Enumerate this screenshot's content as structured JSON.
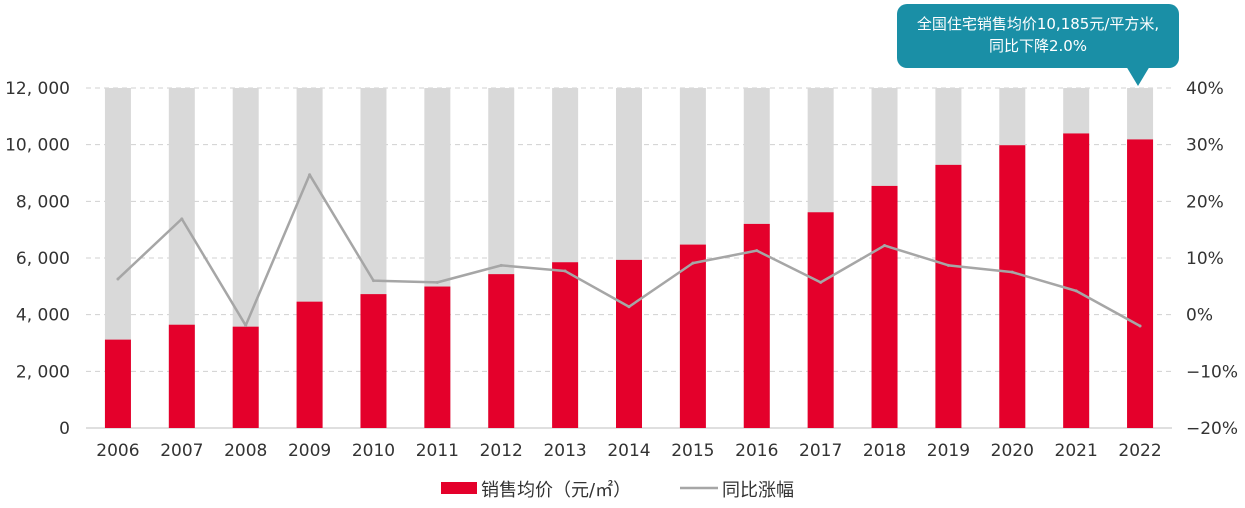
{
  "chart_data": {
    "type": "bar+line",
    "categories": [
      "2006",
      "2007",
      "2008",
      "2009",
      "2010",
      "2011",
      "2012",
      "2013",
      "2014",
      "2015",
      "2016",
      "2017",
      "2018",
      "2019",
      "2020",
      "2021",
      "2022"
    ],
    "series": [
      {
        "name": "销售均价（元/㎡）",
        "type": "bar",
        "axis": "left",
        "color": "#e4002b",
        "values": [
          3119,
          3645,
          3576,
          4459,
          4725,
          4993,
          5430,
          5850,
          5933,
          6473,
          7203,
          7614,
          8544,
          9287,
          9980,
          10396,
          10185
        ]
      },
      {
        "name": "同比涨幅",
        "type": "line",
        "axis": "right",
        "color": "#a6a6a6",
        "values": [
          6.3,
          16.9,
          -1.9,
          24.7,
          6.0,
          5.7,
          8.7,
          7.7,
          1.4,
          9.1,
          11.3,
          5.7,
          12.2,
          8.7,
          7.5,
          4.2,
          -2.0
        ]
      }
    ],
    "background_bar": {
      "color": "#d9d9d9",
      "value": 12000
    },
    "left_axis": {
      "ylim": [
        0,
        12000
      ],
      "ticks": [
        "0",
        "2, 000",
        "4, 000",
        "6, 000",
        "8, 000",
        "10, 000",
        "12, 000"
      ]
    },
    "right_axis": {
      "ylim": [
        -20,
        40
      ],
      "ticks": [
        "−20%",
        "−10%",
        "0%",
        "10%",
        "20%",
        "30%",
        "40%"
      ]
    },
    "grid": true,
    "legend_position": "bottom",
    "annotation": {
      "line1": "全国住宅销售均价10,185元/平方米,",
      "line2": "同比下降2.0%",
      "color": "#1a8fa6",
      "target_category": "2022"
    }
  }
}
